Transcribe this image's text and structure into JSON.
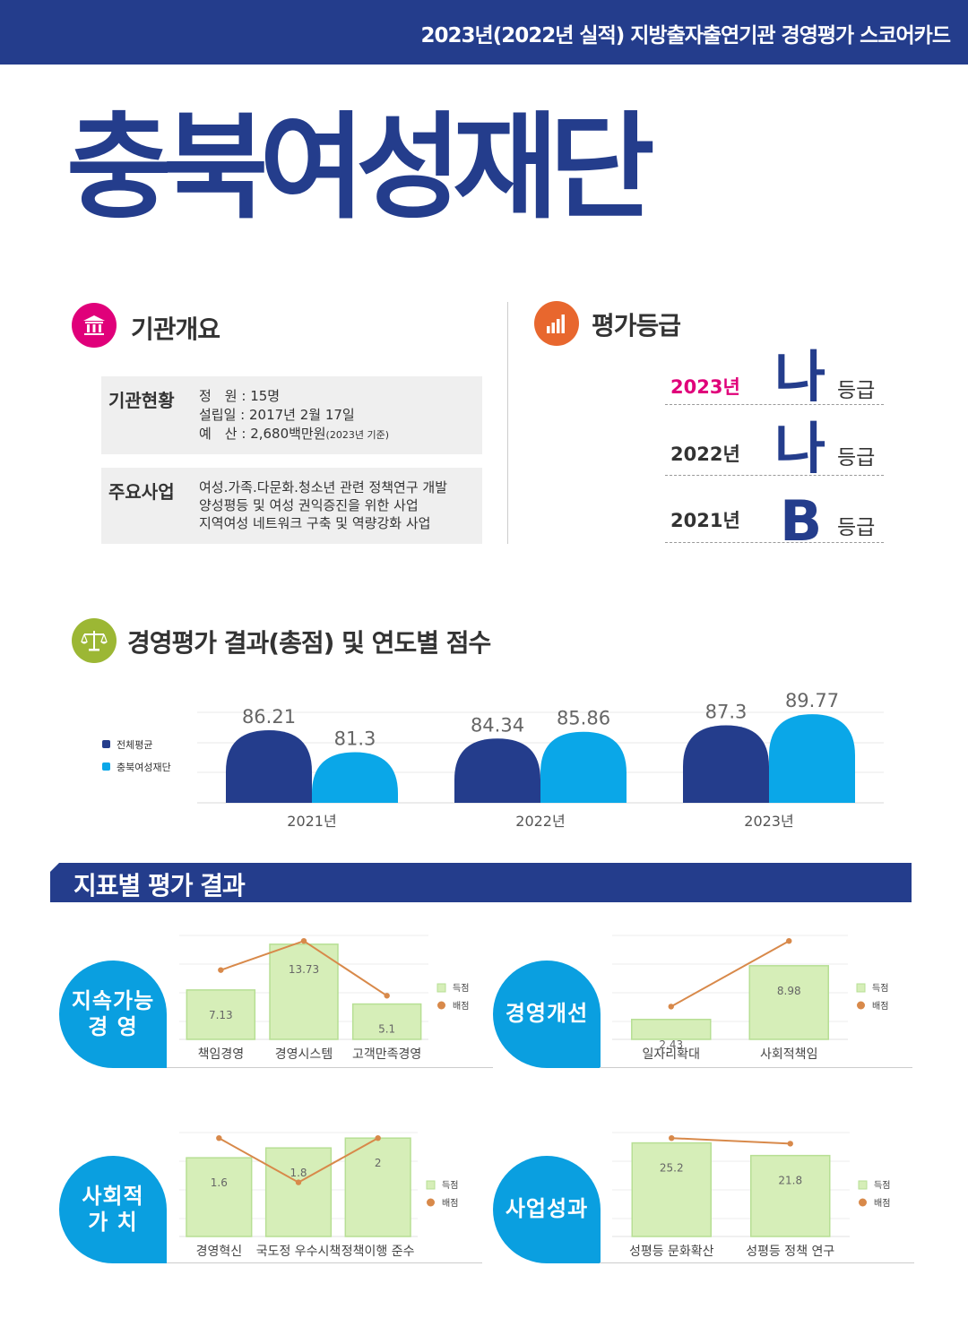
{
  "header": {
    "title": "2023년(2022년 실적) 지방출자출연기관 경영평가 스코어카드"
  },
  "org": {
    "name": "충북여성재단"
  },
  "overview": {
    "title": "기관개요",
    "status": {
      "label": "기관현황",
      "staff": "정　원 : 15명",
      "founded": "설립일 : 2017년 2월 17일",
      "budget": "예　산 : 2,680백만원",
      "budget_note": "(2023년 기준)"
    },
    "business": {
      "label": "주요사업",
      "items": [
        "여성.가족.다문화.청소년 관련 정책연구 개발",
        "양성평등 및 여성 권익증진을 위한 사업",
        "지역여성 네트워크 구축 및 역량강화 사업"
      ]
    }
  },
  "grades": {
    "title": "평가등급",
    "unit": "등급",
    "rows": [
      {
        "year": "2023년",
        "grade": "나",
        "color": "#e0007a"
      },
      {
        "year": "2022년",
        "grade": "나",
        "color": "#333333"
      },
      {
        "year": "2021년",
        "grade": "B",
        "color": "#333333"
      }
    ]
  },
  "colors": {
    "navy": "#243d8c",
    "cyan": "#0aa7e8",
    "pink": "#e0007a",
    "orange": "#e8672e",
    "olive": "#9cb734",
    "green_fill": "#d6eeb8",
    "green_line": "#b7df94",
    "dot": "#d8894a"
  },
  "icons": {
    "overview": "building-icon",
    "grades": "bar-chart-icon",
    "results": "scales-icon"
  },
  "chart_data": [
    {
      "type": "bar",
      "title": "경영평가 결과(총점) 및 연도별 점수",
      "categories": [
        "2021년",
        "2022년",
        "2023년"
      ],
      "series": [
        {
          "name": "전체평균",
          "values": [
            86.21,
            84.34,
            87.3
          ],
          "color": "#243d8c"
        },
        {
          "name": "충북여성재단",
          "values": [
            81.3,
            85.86,
            89.77
          ],
          "color": "#0aa7e8"
        }
      ],
      "legend": "left"
    },
    {
      "type": "bar",
      "title": "지속가능 경 영",
      "categories": [
        "책임경영",
        "경영시스템",
        "고객만족경영"
      ],
      "series": [
        {
          "name": "득점",
          "values": [
            7.13,
            13.73,
            5.1
          ]
        },
        {
          "name": "배점",
          "values": [
            10,
            14.2,
            6.3
          ]
        }
      ],
      "legend": "right"
    },
    {
      "type": "bar",
      "title": "경영개선",
      "categories": [
        "일자리확대",
        "사회적책임"
      ],
      "series": [
        {
          "name": "득점",
          "values": [
            2.43,
            8.98
          ]
        },
        {
          "name": "배점",
          "values": [
            4,
            12
          ]
        }
      ],
      "legend": "right"
    },
    {
      "type": "bar",
      "title": "사회적 가 치",
      "categories": [
        "경영혁신",
        "국도정 우수시책",
        "정책이행 준수"
      ],
      "series": [
        {
          "name": "득점",
          "values": [
            1.6,
            1.8,
            2
          ]
        },
        {
          "name": "배점",
          "values": [
            2,
            1.1,
            2
          ]
        }
      ],
      "legend": "right"
    },
    {
      "type": "bar",
      "title": "사업성과",
      "categories": [
        "성평등 문화확산",
        "성평등 정책 연구"
      ],
      "series": [
        {
          "name": "득점",
          "values": [
            25.2,
            21.8
          ]
        },
        {
          "name": "배점",
          "values": [
            26.5,
            25
          ]
        }
      ],
      "legend": "right"
    }
  ],
  "results_title": "경영평가 결과(총점) 및 연도별 점수",
  "indicator_title": "지표별 평가 결과",
  "indicator_blobs": [
    "지속가능\n경  영",
    "경영개선",
    "사회적\n가  치",
    "사업성과"
  ]
}
